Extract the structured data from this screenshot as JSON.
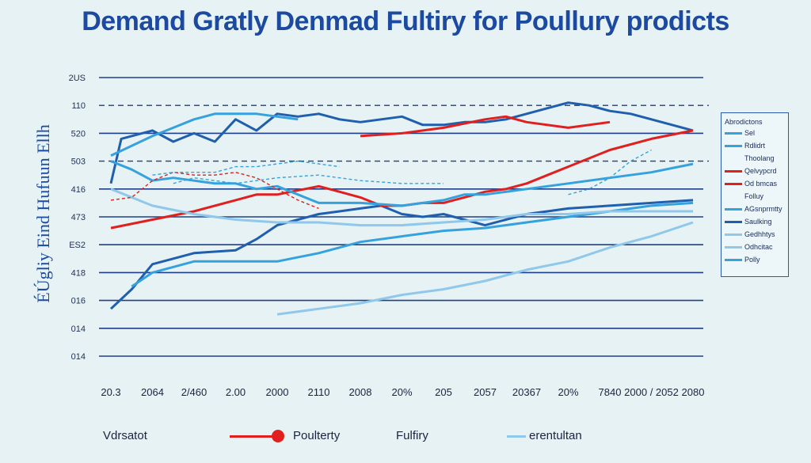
{
  "title": "Demand Gratly Denmad Fultiry for Poullury prodicts",
  "chart_data": {
    "type": "line",
    "title": "Demand Gratly Denmad Fultiry for Poullury prodicts",
    "ylabel": "ÉÚgliy Eind Hufuun Ellh",
    "xlabel": "",
    "y_tick_labels": [
      "2US",
      "110",
      "520",
      "503",
      "416",
      "473",
      "ES2",
      "418",
      "016",
      "014",
      "014"
    ],
    "x": [
      "20.3",
      "2064",
      "2/460",
      "2.00",
      "2000",
      "2110",
      "2008",
      "20%",
      "205",
      "2057",
      "20367",
      "20%",
      "7840",
      "2000 / 2052",
      "2080"
    ],
    "grid": true,
    "legend_position": "right",
    "series": [
      {
        "name": "",
        "color": "#1f5fad",
        "style": "solid",
        "points": [
          [
            0.0,
            3.8
          ],
          [
            0.25,
            2.2
          ],
          [
            1.0,
            1.9
          ],
          [
            1.5,
            2.3
          ],
          [
            2.0,
            2.0
          ],
          [
            2.5,
            2.3
          ],
          [
            3.0,
            1.5
          ],
          [
            3.5,
            1.9
          ],
          [
            4.0,
            1.3
          ],
          [
            4.5,
            1.4
          ],
          [
            5.0,
            1.3
          ],
          [
            5.5,
            1.5
          ],
          [
            6.0,
            1.6
          ],
          [
            6.5,
            1.5
          ],
          [
            7.0,
            1.4
          ],
          [
            7.5,
            1.7
          ],
          [
            8.0,
            1.7
          ],
          [
            8.5,
            1.6
          ],
          [
            9.0,
            1.6
          ],
          [
            9.5,
            1.5
          ],
          [
            10.0,
            1.3
          ],
          [
            10.5,
            1.1
          ],
          [
            11.0,
            0.9
          ],
          [
            11.5,
            1.0
          ],
          [
            12.0,
            1.2
          ],
          [
            12.5,
            1.3
          ],
          [
            13.0,
            1.5
          ],
          [
            14.0,
            1.9
          ]
        ]
      },
      {
        "name": "",
        "color": "#1f5fad",
        "style": "solid",
        "points": [
          [
            0.0,
            8.3
          ],
          [
            0.5,
            7.6
          ],
          [
            1.0,
            6.7
          ],
          [
            2.0,
            6.3
          ],
          [
            3.0,
            6.2
          ],
          [
            3.5,
            5.8
          ],
          [
            4.0,
            5.3
          ],
          [
            4.5,
            5.1
          ],
          [
            5.0,
            4.9
          ],
          [
            5.5,
            4.8
          ],
          [
            6.0,
            4.7
          ],
          [
            6.5,
            4.6
          ],
          [
            7.0,
            4.9
          ],
          [
            7.5,
            5.0
          ],
          [
            8.0,
            4.9
          ],
          [
            8.5,
            5.1
          ],
          [
            9.0,
            5.3
          ],
          [
            9.5,
            5.1
          ],
          [
            10.0,
            4.9
          ],
          [
            10.5,
            4.8
          ],
          [
            11.0,
            4.7
          ],
          [
            12.0,
            4.6
          ],
          [
            13.0,
            4.5
          ],
          [
            14.0,
            4.4
          ]
        ]
      },
      {
        "name": "Poulterty",
        "color": "#e11f1f",
        "style": "solid",
        "points": [
          [
            0.0,
            5.4
          ],
          [
            1.0,
            5.1
          ],
          [
            2.0,
            4.8
          ],
          [
            3.0,
            4.4
          ],
          [
            3.5,
            4.2
          ],
          [
            4.0,
            4.2
          ],
          [
            5.0,
            3.9
          ],
          [
            5.5,
            4.1
          ],
          [
            6.0,
            4.3
          ],
          [
            6.5,
            4.6
          ],
          [
            7.0,
            4.6
          ],
          [
            7.5,
            4.5
          ],
          [
            8.0,
            4.5
          ],
          [
            8.5,
            4.3
          ],
          [
            9.0,
            4.1
          ],
          [
            9.5,
            4.0
          ],
          [
            10.0,
            3.8
          ],
          [
            10.5,
            3.5
          ],
          [
            11.0,
            3.2
          ],
          [
            12.0,
            2.6
          ],
          [
            13.0,
            2.2
          ],
          [
            14.0,
            1.9
          ]
        ]
      },
      {
        "name": "",
        "color": "#e11f1f",
        "style": "solid",
        "points": [
          [
            6.0,
            2.1
          ],
          [
            7.0,
            2.0
          ],
          [
            8.0,
            1.8
          ],
          [
            9.0,
            1.5
          ],
          [
            9.5,
            1.4
          ],
          [
            10.0,
            1.6
          ],
          [
            11.0,
            1.8
          ],
          [
            11.5,
            1.7
          ],
          [
            12.0,
            1.6
          ]
        ]
      },
      {
        "name": "Fulfiry",
        "color": "#35a2de",
        "style": "solid",
        "points": [
          [
            0.0,
            2.8
          ],
          [
            1.0,
            2.1
          ],
          [
            1.5,
            1.8
          ],
          [
            2.0,
            1.5
          ],
          [
            2.5,
            1.3
          ],
          [
            3.0,
            1.3
          ],
          [
            3.5,
            1.3
          ],
          [
            4.0,
            1.4
          ],
          [
            4.5,
            1.5
          ]
        ]
      },
      {
        "name": "",
        "color": "#35a2de",
        "style": "solid",
        "points": [
          [
            0.0,
            3.0
          ],
          [
            0.5,
            3.3
          ],
          [
            1.0,
            3.7
          ],
          [
            1.5,
            3.6
          ],
          [
            2.0,
            3.7
          ],
          [
            2.5,
            3.8
          ],
          [
            3.0,
            3.8
          ],
          [
            3.5,
            4.0
          ],
          [
            4.0,
            3.9
          ],
          [
            5.0,
            4.5
          ],
          [
            6.0,
            4.5
          ],
          [
            7.0,
            4.6
          ],
          [
            8.0,
            4.4
          ],
          [
            8.5,
            4.2
          ],
          [
            9.0,
            4.2
          ],
          [
            10.0,
            4.0
          ],
          [
            11.0,
            3.8
          ],
          [
            12.0,
            3.6
          ],
          [
            13.0,
            3.4
          ],
          [
            14.0,
            3.1
          ]
        ]
      },
      {
        "name": "",
        "color": "#35a2de",
        "style": "solid",
        "points": [
          [
            0.5,
            7.5
          ],
          [
            1.0,
            7.0
          ],
          [
            2.0,
            6.6
          ],
          [
            3.0,
            6.6
          ],
          [
            4.0,
            6.6
          ],
          [
            5.0,
            6.3
          ],
          [
            6.0,
            5.9
          ],
          [
            7.0,
            5.7
          ],
          [
            8.0,
            5.5
          ],
          [
            9.0,
            5.4
          ],
          [
            10.0,
            5.2
          ],
          [
            11.0,
            5.0
          ],
          [
            12.0,
            4.8
          ],
          [
            13.0,
            4.6
          ],
          [
            14.0,
            4.5
          ]
        ]
      },
      {
        "name": "erentultan",
        "color": "#8fc8ea",
        "style": "solid",
        "points": [
          [
            4.0,
            8.5
          ],
          [
            5.0,
            8.3
          ],
          [
            6.0,
            8.1
          ],
          [
            7.0,
            7.8
          ],
          [
            8.0,
            7.6
          ],
          [
            9.0,
            7.3
          ],
          [
            10.0,
            6.9
          ],
          [
            11.0,
            6.6
          ],
          [
            12.0,
            6.1
          ],
          [
            13.0,
            5.7
          ],
          [
            14.0,
            5.2
          ]
        ]
      },
      {
        "name": "",
        "color": "#8fc8ea",
        "style": "solid",
        "points": [
          [
            0.0,
            4.0
          ],
          [
            1.0,
            4.6
          ],
          [
            2.0,
            4.9
          ],
          [
            3.0,
            5.1
          ],
          [
            4.0,
            5.2
          ],
          [
            5.0,
            5.2
          ],
          [
            6.0,
            5.3
          ],
          [
            7.0,
            5.3
          ],
          [
            8.0,
            5.2
          ],
          [
            9.0,
            5.1
          ],
          [
            10.0,
            4.9
          ],
          [
            11.0,
            4.9
          ],
          [
            12.0,
            4.8
          ],
          [
            13.0,
            4.8
          ],
          [
            14.0,
            4.8
          ]
        ]
      },
      {
        "name": "",
        "color": "#e11f1f",
        "style": "dashed",
        "points": [
          [
            0.0,
            4.4
          ],
          [
            0.5,
            4.3
          ],
          [
            1.0,
            3.7
          ],
          [
            1.5,
            3.4
          ],
          [
            2.0,
            3.5
          ],
          [
            2.5,
            3.5
          ],
          [
            3.0,
            3.4
          ],
          [
            3.5,
            3.6
          ],
          [
            4.0,
            4.0
          ],
          [
            4.5,
            4.4
          ],
          [
            5.0,
            4.7
          ]
        ]
      },
      {
        "name": "",
        "color": "#35a2de",
        "style": "dashed",
        "points": [
          [
            1.0,
            3.5
          ],
          [
            1.5,
            3.4
          ],
          [
            2.0,
            3.4
          ],
          [
            2.5,
            3.4
          ],
          [
            3.0,
            3.2
          ],
          [
            3.5,
            3.2
          ],
          [
            4.0,
            3.1
          ],
          [
            4.5,
            3.0
          ],
          [
            5.0,
            3.1
          ],
          [
            5.5,
            3.2
          ]
        ]
      },
      {
        "name": "",
        "color": "#35a2de",
        "style": "dashed",
        "points": [
          [
            11.0,
            4.2
          ],
          [
            11.5,
            4.0
          ],
          [
            12.0,
            3.6
          ],
          [
            12.5,
            3.0
          ],
          [
            13.0,
            2.6
          ]
        ]
      },
      {
        "name": "",
        "color": "#35a2de",
        "style": "dashed",
        "points": [
          [
            1.5,
            3.8
          ],
          [
            2.0,
            3.6
          ],
          [
            3.0,
            3.8
          ],
          [
            4.0,
            3.6
          ],
          [
            5.0,
            3.5
          ],
          [
            6.0,
            3.7
          ],
          [
            7.0,
            3.8
          ],
          [
            8.0,
            3.8
          ]
        ]
      }
    ]
  },
  "legend": {
    "title": "Abrodictons",
    "items": [
      {
        "label": "Sel",
        "color": "#35a2de"
      },
      {
        "label": "Rdlidrt",
        "color": "#35a2de"
      },
      {
        "label": "Thoolang",
        "color": ""
      },
      {
        "label": "Qelvypcrd",
        "color": "#e11f1f"
      },
      {
        "label": "Od bmcas",
        "color": "#e11f1f"
      },
      {
        "label": "Folluy",
        "color": ""
      },
      {
        "label": "AGsnprmtty",
        "color": "#35a2de"
      },
      {
        "label": "Saulking",
        "color": "#1f5fad"
      },
      {
        "label": "Gedhhtys",
        "color": "#8fc8ea"
      },
      {
        "label": "Odhcitac",
        "color": "#8fc8ea"
      },
      {
        "label": "Polly",
        "color": "#35a2de"
      }
    ]
  },
  "bottom_legend": [
    {
      "label": "Vdrsatot",
      "color": ""
    },
    {
      "label": "Poulterty",
      "color": "#e11f1f"
    },
    {
      "label": "Fulfiry",
      "color": ""
    },
    {
      "label": "erentultan",
      "color": "#8fc8ea"
    }
  ]
}
